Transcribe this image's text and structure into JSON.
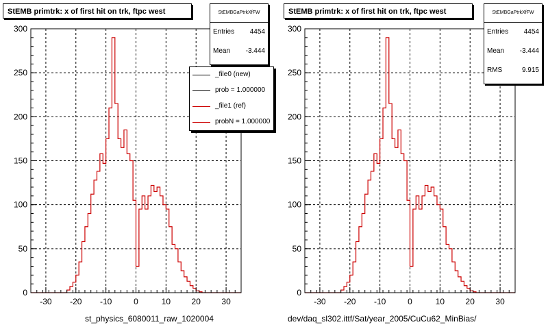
{
  "colors": {
    "hist_line": "#cc0000",
    "new_line": "#000000",
    "ref_line": "#cc0000",
    "frame": "#000000",
    "background": "#ffffff"
  },
  "panels": [
    {
      "title": "StEMB primtrk: x of first hit on trk, ftpc west",
      "stats": {
        "name": "StEMBGaPtrkXfFW",
        "rows": [
          {
            "label": "Entries",
            "value": "4454"
          },
          {
            "label": "Mean",
            "value": "-3.444"
          }
        ]
      },
      "legend": [
        {
          "label": "_file0 (new)"
        },
        {
          "label": "prob = 1.000000"
        },
        {
          "label": "_file1 (ref)"
        },
        {
          "label": "probN = 1.000000"
        }
      ],
      "footer": "st_physics_6080011_raw_1020004"
    },
    {
      "title": "StEMB primtrk: x of first hit on trk, ftpc west",
      "stats": {
        "name": "StEMBGaPtrkXfFW",
        "rows": [
          {
            "label": "Entries",
            "value": "4454"
          },
          {
            "label": "Mean",
            "value": "-3.444"
          },
          {
            "label": "RMS",
            "value": "9.915"
          }
        ]
      },
      "footer": "dev/daq_sl302.ittf/Sat/year_2005/CuCu62_MinBias/"
    }
  ],
  "chart_data": [
    {
      "type": "histogram",
      "title": "StEMB primtrk: x of first hit on trk, ftpc west",
      "xlim": [
        -35,
        35
      ],
      "ylim": [
        0,
        300
      ],
      "xticks": [
        -30,
        -20,
        -10,
        0,
        10,
        20,
        30
      ],
      "yticks": [
        0,
        50,
        100,
        150,
        200,
        250,
        300
      ],
      "grid": true,
      "legend_position": "top-right",
      "bin_edges_start": -35,
      "bin_width": 1,
      "values": [
        0,
        0,
        0,
        0,
        0,
        0,
        0,
        0,
        0,
        0,
        0,
        0,
        3,
        7,
        12,
        20,
        35,
        58,
        75,
        90,
        112,
        128,
        138,
        158,
        147,
        175,
        210,
        290,
        215,
        175,
        165,
        185,
        158,
        150,
        105,
        30,
        95,
        110,
        95,
        110,
        122,
        115,
        120,
        110,
        100,
        95,
        75,
        55,
        50,
        35,
        25,
        18,
        13,
        8,
        5,
        2,
        1,
        0,
        0,
        0,
        0,
        0,
        0,
        0,
        0,
        0,
        0,
        0,
        0,
        0
      ],
      "series": [
        {
          "name": "_file0 (new)"
        },
        {
          "name": "_file1 (ref)"
        }
      ]
    },
    {
      "type": "histogram",
      "title": "StEMB primtrk: x of first hit on trk, ftpc west",
      "xlim": [
        -35,
        35
      ],
      "ylim": [
        0,
        300
      ],
      "xticks": [
        -30,
        -20,
        -10,
        0,
        10,
        20,
        30
      ],
      "yticks": [
        0,
        50,
        100,
        150,
        200,
        250,
        300
      ],
      "grid": true,
      "bin_edges_start": -35,
      "bin_width": 1,
      "values": [
        0,
        0,
        0,
        0,
        0,
        0,
        0,
        0,
        0,
        0,
        0,
        0,
        3,
        7,
        12,
        20,
        35,
        58,
        75,
        90,
        112,
        128,
        138,
        158,
        147,
        175,
        210,
        290,
        215,
        175,
        165,
        185,
        158,
        150,
        105,
        30,
        95,
        110,
        95,
        110,
        122,
        115,
        120,
        110,
        100,
        95,
        75,
        55,
        50,
        35,
        25,
        18,
        13,
        8,
        5,
        2,
        1,
        0,
        0,
        0,
        0,
        0,
        0,
        0,
        0,
        0,
        0,
        0,
        0,
        0
      ]
    }
  ]
}
